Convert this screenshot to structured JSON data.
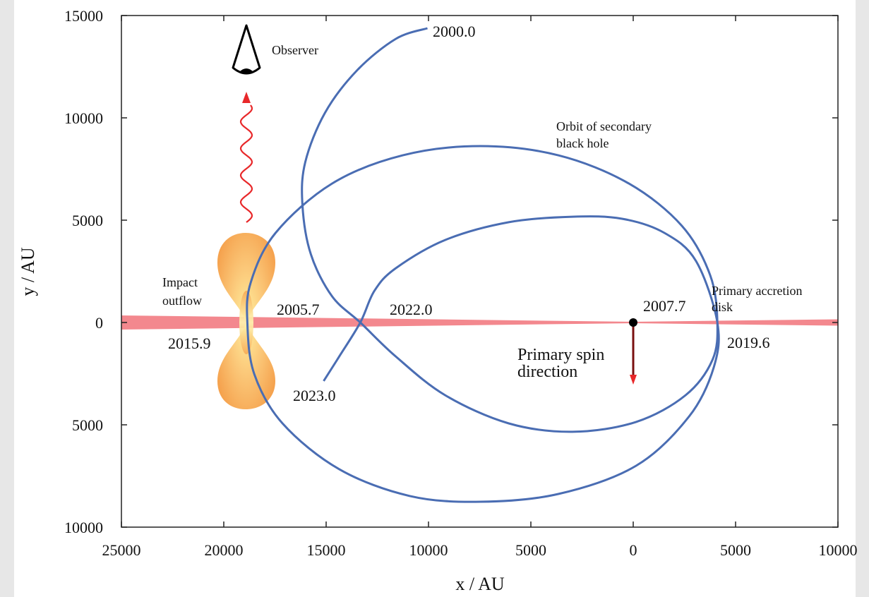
{
  "chart_data": {
    "type": "line",
    "xlabel": "x / AU",
    "ylabel": "y / AU",
    "xlim": [
      -25000,
      10000
    ],
    "ylim": [
      -10000,
      15000
    ],
    "xticks": [
      {
        "value": -25000,
        "label": "25000"
      },
      {
        "value": -20000,
        "label": "20000"
      },
      {
        "value": -15000,
        "label": "15000"
      },
      {
        "value": -10000,
        "label": "10000"
      },
      {
        "value": -5000,
        "label": "5000"
      },
      0,
      5000,
      10000
    ],
    "yticks": [
      15000,
      10000,
      5000,
      0,
      {
        "value": -5000,
        "label": "5000"
      },
      {
        "value": -10000,
        "label": "10000"
      }
    ],
    "series": [
      {
        "color": "#4a6db3",
        "x": [
          -10050,
          -11600,
          -13500,
          -15060,
          -16020,
          -16160,
          -15750,
          -14710,
          -13330,
          -11600,
          -9190,
          -6080,
          -2970,
          140,
          2560,
          3870,
          4110,
          3760,
          2380,
          -210,
          -3660,
          -7460,
          -11260,
          -14710,
          -17470,
          -18680,
          -18850,
          -18510,
          -17130,
          -14360,
          -10910,
          -7460,
          -3660,
          140,
          2730,
          3940,
          4110,
          3070,
          1520,
          -550,
          -2970,
          -6080,
          -9190,
          -11600,
          -12640,
          -13330,
          -14360,
          -15120
        ],
        "y": [
          14380,
          13860,
          12310,
          10240,
          7830,
          5760,
          3340,
          1280,
          0,
          -1660,
          -3550,
          -4930,
          -5340,
          -4860,
          -3550,
          -1830,
          0,
          2310,
          4720,
          6790,
          8170,
          8620,
          8170,
          6790,
          4380,
          1970,
          0,
          -2520,
          -4930,
          -7170,
          -8480,
          -8760,
          -8380,
          -7000,
          -4590,
          -2170,
          0,
          3000,
          4380,
          5070,
          5170,
          4900,
          4030,
          2650,
          1550,
          0,
          -1660,
          -2860
        ]
      }
    ],
    "primary_position": {
      "x": 0,
      "y": 0
    },
    "annotations": [
      {
        "lines": [
          "2000.0"
        ]
      },
      {
        "lines": [
          "Observer"
        ]
      },
      {
        "lines": [
          "Orbit of secondary",
          "black hole"
        ]
      },
      {
        "lines": [
          "Impact",
          "outflow"
        ]
      },
      {
        "lines": [
          "2005.7"
        ]
      },
      {
        "lines": [
          "2022.0"
        ]
      },
      {
        "lines": [
          "2007.7"
        ]
      },
      {
        "lines": [
          "Primary accretion",
          "disk"
        ]
      },
      {
        "lines": [
          "2015.9"
        ]
      },
      {
        "lines": [
          "2019.6"
        ]
      },
      {
        "lines": [
          "Primary spin",
          "direction"
        ]
      },
      {
        "lines": [
          "2023.0"
        ]
      }
    ]
  }
}
